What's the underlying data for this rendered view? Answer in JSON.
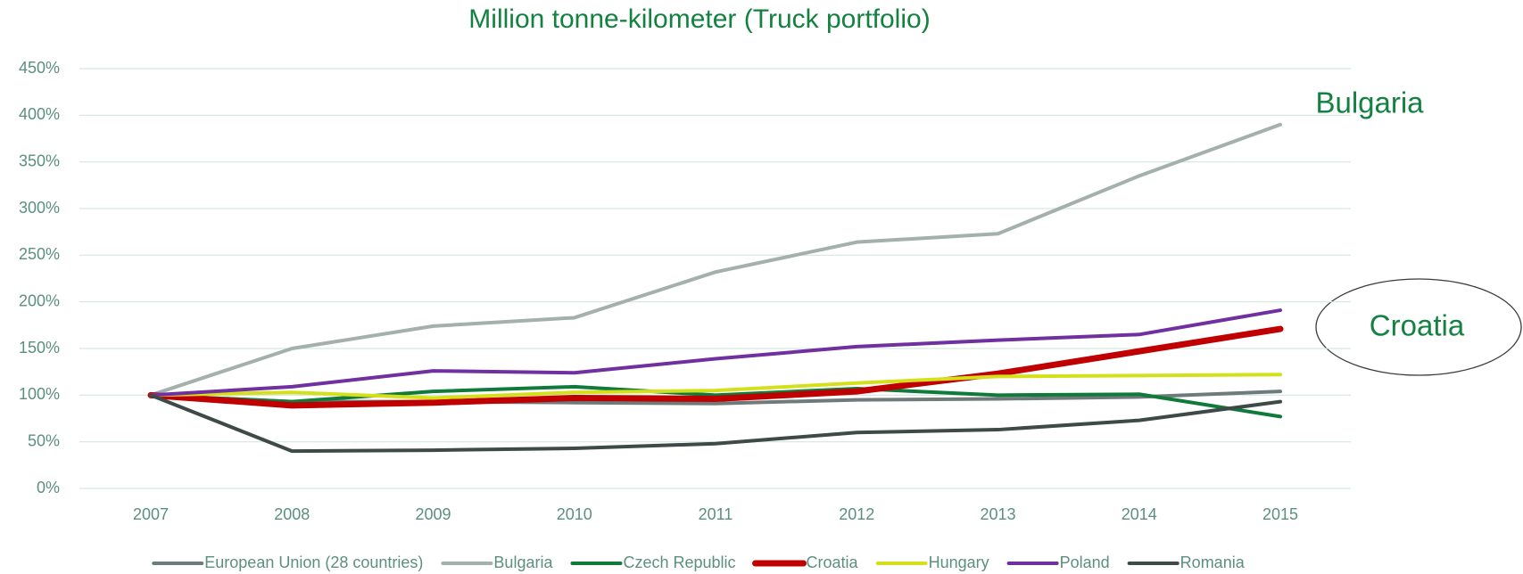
{
  "chart_data": {
    "type": "line",
    "title": "Million tonne-kilometer (Truck portfolio)",
    "annotations": [
      "Bulgaria",
      "Croatia"
    ],
    "categories": [
      "2007",
      "2008",
      "2009",
      "2010",
      "2011",
      "2012",
      "2013",
      "2014",
      "2015"
    ],
    "series": [
      {
        "name": "European Union (28 countries)",
        "color": "#6e7b7a",
        "line_width": 4,
        "values": [
          100,
          93,
          93,
          92,
          91,
          95,
          96,
          98,
          104
        ]
      },
      {
        "name": "Bulgaria",
        "color": "#a3b0ac",
        "line_width": 4,
        "values": [
          100,
          150,
          174,
          183,
          232,
          264,
          273,
          335,
          390
        ]
      },
      {
        "name": "Czech Republic",
        "color": "#0f7a3a",
        "line_width": 4,
        "values": [
          100,
          93,
          104,
          109,
          100,
          107,
          100,
          101,
          77
        ]
      },
      {
        "name": "Croatia",
        "color": "#c00000",
        "line_width": 7,
        "values": [
          100,
          89,
          92,
          97,
          96,
          104,
          123,
          147,
          171
        ]
      },
      {
        "name": "Hungary",
        "color": "#d4e01a",
        "line_width": 4,
        "values": [
          100,
          103,
          97,
          103,
          105,
          113,
          120,
          121,
          122
        ]
      },
      {
        "name": "Poland",
        "color": "#7030a0",
        "line_width": 4,
        "values": [
          100,
          109,
          126,
          124,
          139,
          152,
          159,
          165,
          191
        ]
      },
      {
        "name": "Romania",
        "color": "#3d4a47",
        "line_width": 4,
        "values": [
          100,
          40,
          41,
          43,
          48,
          60,
          63,
          73,
          93
        ]
      }
    ],
    "ylim": [
      0,
      450
    ],
    "yticks": [
      {
        "value": 0,
        "label": "0%"
      },
      {
        "value": 50,
        "label": "50%"
      },
      {
        "value": 100,
        "label": "100%"
      },
      {
        "value": 150,
        "label": "150%"
      },
      {
        "value": 200,
        "label": "200%"
      },
      {
        "value": 250,
        "label": "250%"
      },
      {
        "value": 300,
        "label": "300%"
      },
      {
        "value": 350,
        "label": "350%"
      },
      {
        "value": 400,
        "label": "400%"
      },
      {
        "value": 450,
        "label": "450%"
      }
    ],
    "grid": true,
    "legend": "bottom"
  }
}
